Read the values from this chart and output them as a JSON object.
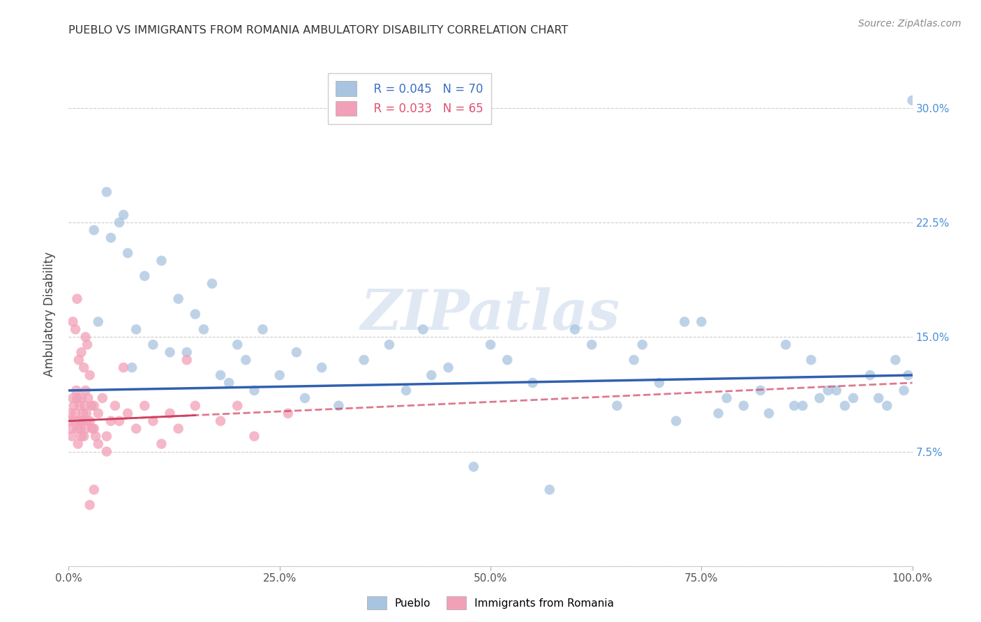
{
  "title": "PUEBLO VS IMMIGRANTS FROM ROMANIA AMBULATORY DISABILITY CORRELATION CHART",
  "source": "Source: ZipAtlas.com",
  "ylabel": "Ambulatory Disability",
  "xlim": [
    0,
    100
  ],
  "ylim": [
    0,
    33
  ],
  "yticks": [
    0,
    7.5,
    15.0,
    22.5,
    30.0
  ],
  "xticks": [
    0,
    25,
    50,
    75,
    100
  ],
  "xtick_labels": [
    "0.0%",
    "25.0%",
    "50.0%",
    "75.0%",
    "100.0%"
  ],
  "ytick_labels": [
    "",
    "7.5%",
    "15.0%",
    "22.5%",
    "30.0%"
  ],
  "legend_blue_r": "R = 0.045",
  "legend_blue_n": "N = 70",
  "legend_pink_r": "R = 0.033",
  "legend_pink_n": "N = 65",
  "blue_color": "#a8c4e0",
  "pink_color": "#f2a0b8",
  "trend_blue_color": "#3060b0",
  "trend_pink_color": "#d04060",
  "watermark": "ZIPatlas",
  "background_color": "#ffffff",
  "grid_color": "#cccccc",
  "pueblo_x": [
    3.0,
    4.5,
    5.0,
    6.0,
    6.5,
    7.0,
    8.0,
    9.0,
    10.0,
    11.0,
    12.0,
    13.0,
    14.0,
    15.0,
    17.0,
    18.0,
    19.0,
    20.0,
    21.0,
    22.0,
    25.0,
    27.0,
    28.0,
    30.0,
    32.0,
    35.0,
    38.0,
    40.0,
    42.0,
    45.0,
    48.0,
    50.0,
    52.0,
    55.0,
    57.0,
    60.0,
    62.0,
    65.0,
    67.0,
    68.0,
    70.0,
    72.0,
    73.0,
    75.0,
    77.0,
    78.0,
    80.0,
    82.0,
    83.0,
    85.0,
    86.0,
    87.0,
    88.0,
    89.0,
    90.0,
    91.0,
    92.0,
    93.0,
    95.0,
    96.0,
    97.0,
    98.0,
    99.0,
    99.5,
    100.0,
    3.5,
    7.5,
    16.0,
    23.0,
    43.0
  ],
  "pueblo_y": [
    22.0,
    24.5,
    21.5,
    22.5,
    23.0,
    20.5,
    15.5,
    19.0,
    14.5,
    20.0,
    14.0,
    17.5,
    14.0,
    16.5,
    18.5,
    12.5,
    12.0,
    14.5,
    13.5,
    11.5,
    12.5,
    14.0,
    11.0,
    13.0,
    10.5,
    13.5,
    14.5,
    11.5,
    15.5,
    13.0,
    6.5,
    14.5,
    13.5,
    12.0,
    5.0,
    15.5,
    14.5,
    10.5,
    13.5,
    14.5,
    12.0,
    9.5,
    16.0,
    16.0,
    10.0,
    11.0,
    10.5,
    11.5,
    10.0,
    14.5,
    10.5,
    10.5,
    13.5,
    11.0,
    11.5,
    11.5,
    10.5,
    11.0,
    12.5,
    11.0,
    10.5,
    13.5,
    11.5,
    12.5,
    30.5,
    16.0,
    13.0,
    15.5,
    15.5,
    12.5
  ],
  "romania_x": [
    0.1,
    0.2,
    0.3,
    0.4,
    0.5,
    0.6,
    0.7,
    0.8,
    0.9,
    1.0,
    1.0,
    1.1,
    1.2,
    1.3,
    1.4,
    1.5,
    1.5,
    1.6,
    1.7,
    1.8,
    1.9,
    2.0,
    2.0,
    2.1,
    2.2,
    2.3,
    2.5,
    2.5,
    2.7,
    2.8,
    3.0,
    3.0,
    3.2,
    3.5,
    4.0,
    4.5,
    5.0,
    5.5,
    6.0,
    7.0,
    8.0,
    9.0,
    10.0,
    11.0,
    12.0,
    13.0,
    15.0,
    18.0,
    22.0,
    26.0,
    0.5,
    0.8,
    1.0,
    1.2,
    1.5,
    1.8,
    2.0,
    2.2,
    2.5,
    3.0,
    3.5,
    4.5,
    6.5,
    14.0,
    20.0
  ],
  "romania_y": [
    9.5,
    10.0,
    9.0,
    8.5,
    11.0,
    10.5,
    9.5,
    10.0,
    11.5,
    11.0,
    9.0,
    8.0,
    9.5,
    10.5,
    9.0,
    8.5,
    11.0,
    9.5,
    10.0,
    8.5,
    10.5,
    9.0,
    11.5,
    10.0,
    9.5,
    11.0,
    9.5,
    12.5,
    10.5,
    9.0,
    10.5,
    9.0,
    8.5,
    10.0,
    11.0,
    8.5,
    9.5,
    10.5,
    9.5,
    10.0,
    9.0,
    10.5,
    9.5,
    8.0,
    10.0,
    9.0,
    10.5,
    9.5,
    8.5,
    10.0,
    16.0,
    15.5,
    17.5,
    13.5,
    14.0,
    13.0,
    15.0,
    14.5,
    4.0,
    5.0,
    8.0,
    7.5,
    13.0,
    13.5,
    10.5
  ]
}
